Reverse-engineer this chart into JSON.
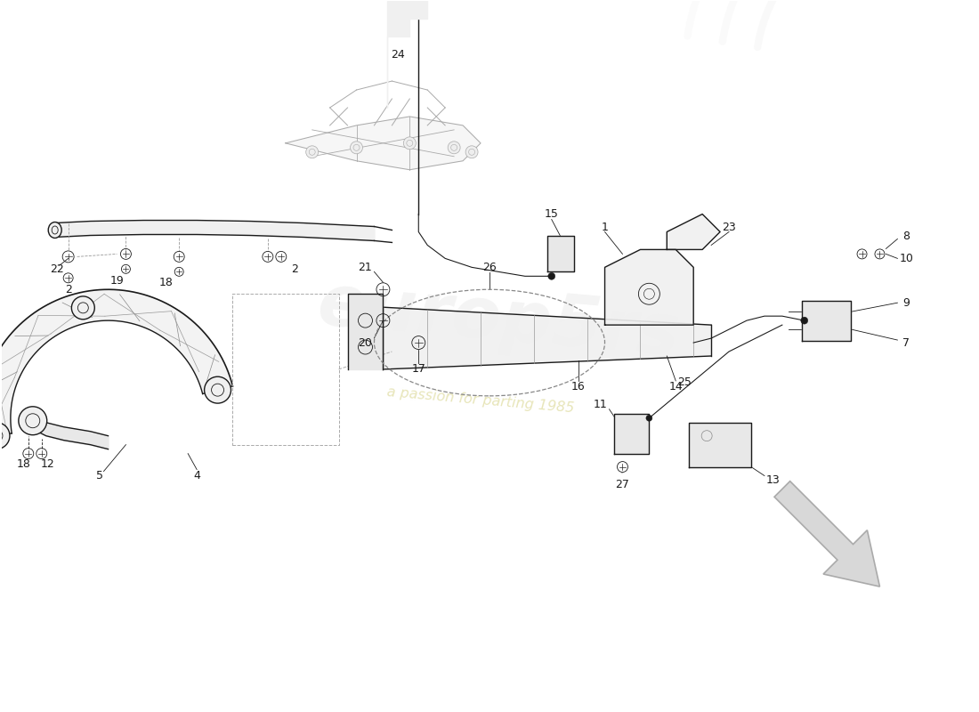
{
  "bg": "#ffffff",
  "lc": "#1a1a1a",
  "lc_light": "#888888",
  "lc_fill": "#f0f0f0",
  "lc_fill2": "#e8e8e8",
  "wm_color1": "#d0ccc0",
  "wm_color2": "#e0dcc8",
  "fig_w": 11.0,
  "fig_h": 8.0,
  "dpi": 100,
  "fs": 9,
  "fs_label": 8
}
